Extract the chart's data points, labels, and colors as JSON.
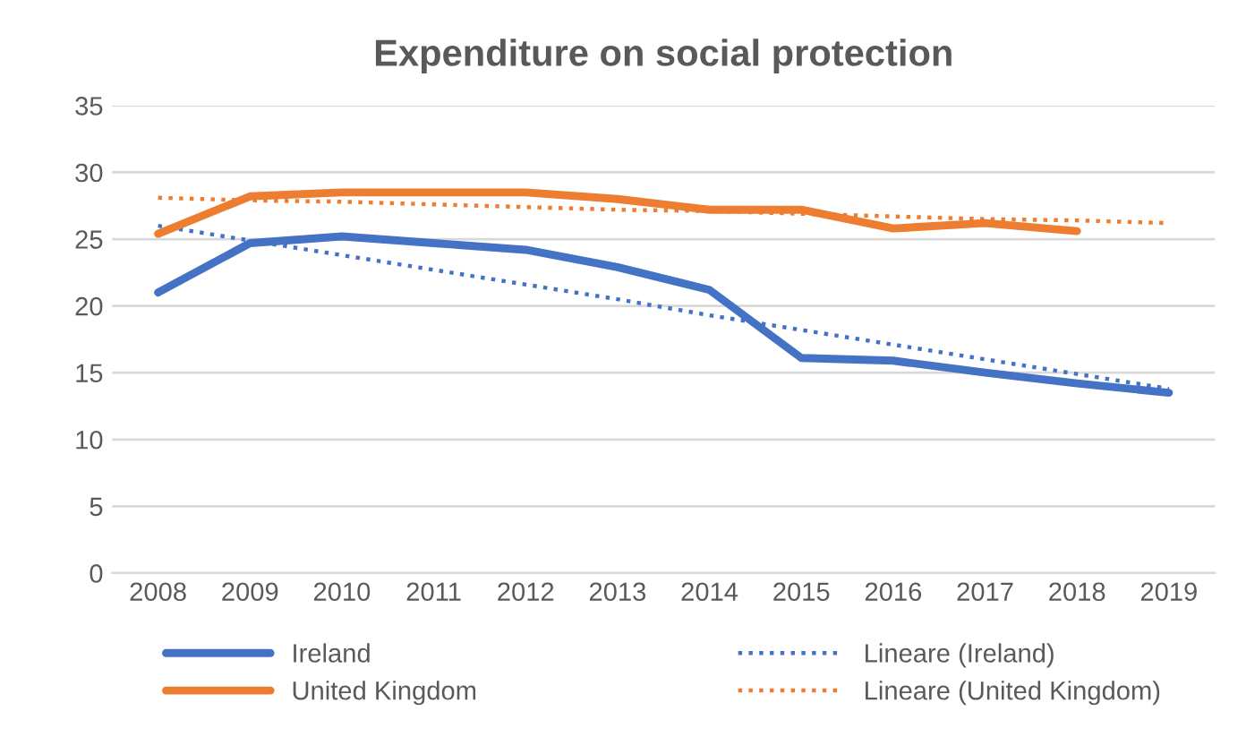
{
  "chart_data": {
    "type": "line",
    "title": "Expenditure on social protection",
    "categories": [
      "2008",
      "2009",
      "2010",
      "2011",
      "2012",
      "2013",
      "2014",
      "2015",
      "2016",
      "2017",
      "2018",
      "2019"
    ],
    "series": [
      {
        "name": "Ireland",
        "color": "#4472c4",
        "values": [
          21,
          24.7,
          25.2,
          24.7,
          24.2,
          22.9,
          21.2,
          16.1,
          15.9,
          15,
          14.2,
          13.5
        ]
      },
      {
        "name": "United Kingdom",
        "color": "#ed7d31",
        "values": [
          25.4,
          28.2,
          28.5,
          28.5,
          28.5,
          28,
          27.2,
          27.2,
          25.8,
          26.2,
          25.6,
          null
        ]
      },
      {
        "name": "Lineare (Ireland)",
        "color": "#4472c4",
        "type": "line",
        "line_style": "dotted",
        "values": [
          26,
          24.9,
          23.8,
          22.7,
          21.6,
          20.5,
          19.3,
          18.2,
          17.1,
          16.0,
          14.9,
          13.8
        ]
      },
      {
        "name": "Lineare (United Kingdom)",
        "color": "#ed7d31",
        "type": "line",
        "line_style": "dotted",
        "values": [
          28.1,
          27.9,
          27.8,
          27.6,
          27.4,
          27.2,
          27.1,
          26.9,
          26.7,
          26.5,
          26.4,
          26.2
        ]
      }
    ],
    "ylim": [
      0,
      35
    ],
    "yticks": [
      0,
      5,
      10,
      15,
      20,
      25,
      30,
      35
    ],
    "grid": "y",
    "legend": "bottom",
    "line_style": "solid"
  }
}
